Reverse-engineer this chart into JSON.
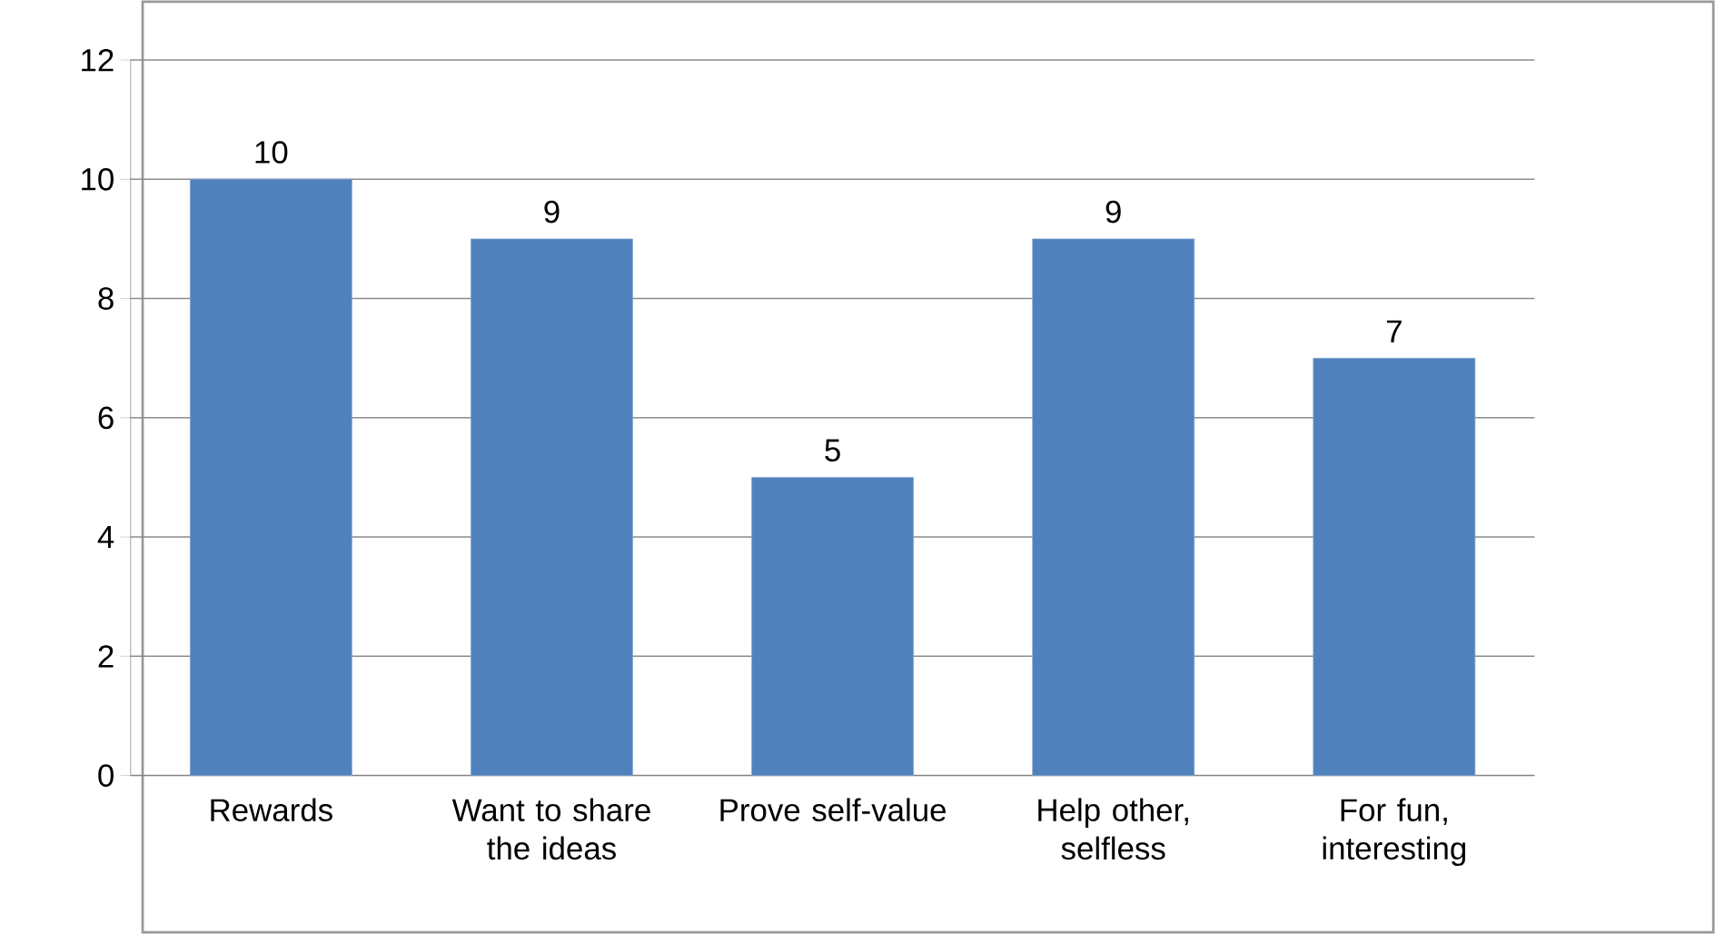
{
  "chart_data": {
    "type": "bar",
    "categories": [
      "Rewards",
      "Want to share the ideas",
      "Prove self-value",
      "Help other, selfless",
      "For fun, interesting"
    ],
    "values": [
      10,
      9,
      5,
      9,
      7
    ],
    "color": "#4f81bd",
    "ylim": [
      0,
      12
    ],
    "yticks": [
      0,
      2,
      4,
      6,
      8,
      10,
      12
    ],
    "grid": "y",
    "data_labels": true
  }
}
